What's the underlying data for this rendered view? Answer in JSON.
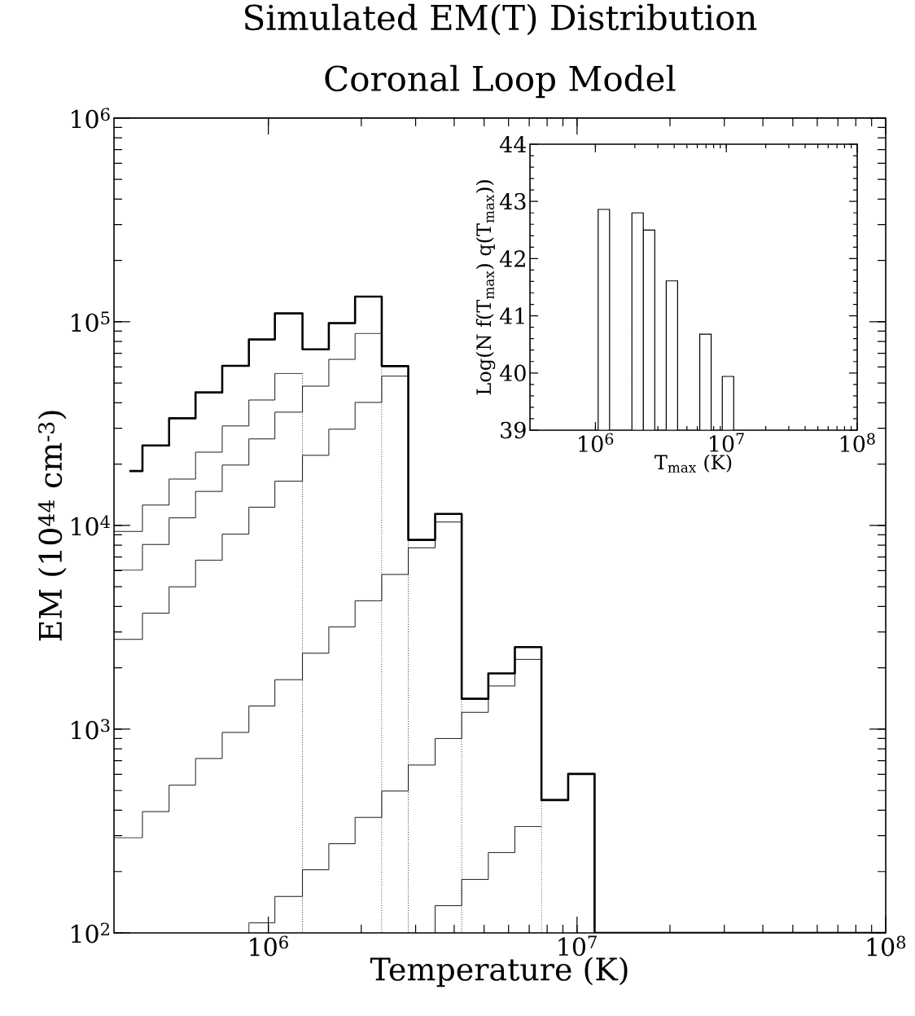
{
  "chart_data": [
    {
      "type": "step",
      "title": "Simulated EM(T) Distribution",
      "subtitle": "Coronal Loop Model",
      "xlabel": "Temperature (K)",
      "ylabel": "EM (10$^{44}$ cm$^{-3}$)",
      "log": "xy",
      "xlim": [
        316228,
        100000000
      ],
      "ylim": [
        100,
        1000000
      ],
      "xticks": [
        {
          "value": 1000000,
          "label": "10$^{6}$"
        },
        {
          "value": 10000000,
          "label": "10$^{7}$"
        },
        {
          "value": 100000000,
          "label": "10$^{8}$"
        }
      ],
      "yticks": [
        {
          "value": 100,
          "label": "10$^{2}$"
        },
        {
          "value": 1000,
          "label": "10$^{3}$"
        },
        {
          "value": 10000,
          "label": "10$^{4}$"
        },
        {
          "value": 100000,
          "label": "10$^{5}$"
        },
        {
          "value": 1000000,
          "label": "10$^{6}$"
        }
      ],
      "series": [
        {
          "color": "#000000",
          "x": [
            355000,
            391000,
            477000,
            581000,
            709000,
            865000,
            1050000,
            1290000,
            1570000,
            1910000,
            2330000,
            2840000,
            3470000,
            4230000,
            5160000,
            6290000,
            7670000,
            9360000,
            11400000,
            100000000
          ],
          "values": [
            18500,
            24700,
            33600,
            45000,
            60800,
            81900,
            110000,
            73300,
            98500,
            133000,
            60600,
            8500,
            11400,
            1410,
            1880,
            2530,
            449,
            603,
            100,
            100
          ]
        },
        {
          "color": "#000000",
          "x": [
            316228,
            391000,
            477000,
            581000,
            709000,
            865000,
            1050000,
            1290000
          ],
          "values": [
            9350,
            12600,
            16900,
            22900,
            30800,
            41300,
            55800,
            55800
          ]
        },
        {
          "color": "#000000",
          "x": [
            316228,
            391000,
            477000,
            581000,
            709000,
            865000,
            1050000,
            1290000,
            1570000,
            1910000,
            2330000
          ],
          "values": [
            6030,
            8070,
            10900,
            14700,
            19800,
            26600,
            36000,
            48300,
            65400,
            87700,
            87700
          ]
        },
        {
          "color": "#000000",
          "x": [
            316228,
            391000,
            477000,
            581000,
            709000,
            865000,
            1050000,
            1290000,
            1570000,
            1910000,
            2330000,
            2840000
          ],
          "values": [
            2760,
            3710,
            5000,
            6750,
            9070,
            12300,
            16500,
            22100,
            29700,
            40200,
            54100,
            54100
          ]
        },
        {
          "color": "#000000",
          "x": [
            316228,
            391000,
            477000,
            581000,
            709000,
            865000,
            1050000,
            1290000,
            1570000,
            1910000,
            2330000,
            2840000,
            3470000,
            4230000
          ],
          "values": [
            293,
            394,
            531,
            718,
            964,
            1300,
            1750,
            2360,
            3180,
            4270,
            5750,
            7770,
            10400,
            10400
          ]
        },
        {
          "color": "#000000",
          "x": [
            865000,
            865000,
            1050000,
            1290000,
            1570000,
            1910000,
            2330000,
            2840000,
            3470000,
            4230000,
            5160000,
            6290000,
            7670000
          ],
          "values": [
            100,
            112,
            151,
            204,
            274,
            369,
            497,
            667,
            900,
            1210,
            1630,
            2200,
            2200
          ]
        },
        {
          "color": "#000000",
          "x": [
            3470000,
            3470000,
            4230000,
            5160000,
            6290000,
            7670000
          ],
          "values": [
            100,
            136,
            183,
            248,
            333,
            333
          ]
        },
        {
          "type": "line",
          "line_style": "dotted",
          "color": "#000000",
          "x": [
            1290000,
            1290000
          ],
          "values": [
            55800,
            100
          ]
        },
        {
          "type": "line",
          "line_style": "dotted",
          "color": "#000000",
          "x": [
            2330000,
            2330000
          ],
          "values": [
            87700,
            100
          ]
        },
        {
          "type": "line",
          "line_style": "dotted",
          "color": "#000000",
          "x": [
            2840000,
            2840000
          ],
          "values": [
            54100,
            100
          ]
        },
        {
          "type": "line",
          "line_style": "dotted",
          "color": "#000000",
          "x": [
            4230000,
            4230000
          ],
          "values": [
            10400,
            100
          ]
        },
        {
          "type": "line",
          "line_style": "dotted",
          "color": "#000000",
          "x": [
            7670000,
            7670000
          ],
          "values": [
            2200,
            100
          ]
        }
      ]
    },
    {
      "type": "bar",
      "xlabel": "T$_{max}$ (K)",
      "ylabel": "Log(N f(T$_{max}$) q(T$_{max}$))",
      "log": "x",
      "xlim": [
        316228,
        100000000
      ],
      "ylim": [
        39,
        44
      ],
      "xticks": [
        {
          "value": 1000000,
          "label": "10$^{6}$"
        },
        {
          "value": 10000000,
          "label": "10$^{7}$"
        },
        {
          "value": 100000000,
          "label": "10$^{8}$"
        }
      ],
      "yticks": [
        39,
        40,
        41,
        42,
        43,
        44
      ],
      "x": [
        1160000,
        2100000,
        2570000,
        3840000,
        6930000,
        10300000
      ],
      "values": [
        42.86,
        42.8,
        42.5,
        41.61,
        40.68,
        39.94
      ],
      "color": "#ffffff"
    }
  ]
}
